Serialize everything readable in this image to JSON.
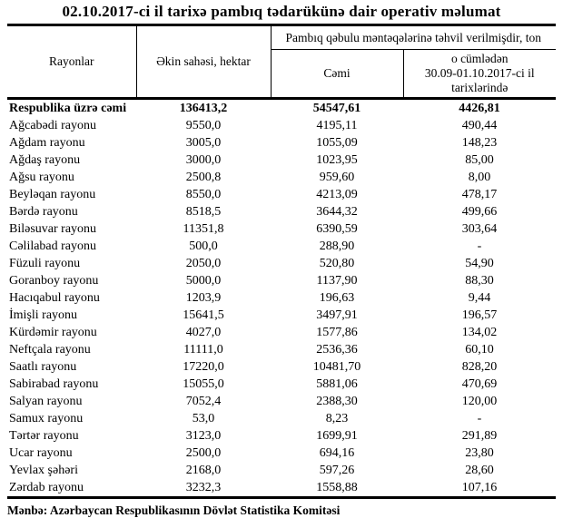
{
  "title": "02.10.2017-ci il tarixə pambıq tədarükünə dair operativ məlumat",
  "colors": {
    "text": "#000000",
    "background": "#ffffff",
    "border": "#000000"
  },
  "table": {
    "headers": {
      "rayonlar": "Rayonlar",
      "ekin_sahesi": "Əkin sahəsi, hektar",
      "tehvil_group": "Pambıq qəbulu məntəqələrinə təhvil verilmişdir, ton",
      "cemi": "Cəmi",
      "o_cumleden": "o cümlədən\n30.09-01.10.2017-ci il\ntarixlərində"
    },
    "rows": [
      {
        "name": "Respublika üzrə cəmi",
        "ekin_sahesi": "136413,2",
        "cemi": "54547,61",
        "o_cumleden": "4426,81",
        "bold": true
      },
      {
        "name": "Ağcabədi rayonu",
        "ekin_sahesi": "9550,0",
        "cemi": "4195,11",
        "o_cumleden": "490,44"
      },
      {
        "name": "Ağdam rayonu",
        "ekin_sahesi": "3005,0",
        "cemi": "1055,09",
        "o_cumleden": "148,23"
      },
      {
        "name": "Ağdaş rayonu",
        "ekin_sahesi": "3000,0",
        "cemi": "1023,95",
        "o_cumleden": "85,00"
      },
      {
        "name": "Ağsu rayonu",
        "ekin_sahesi": "2500,8",
        "cemi": "959,60",
        "o_cumleden": "8,00"
      },
      {
        "name": "Beyləqan rayonu",
        "ekin_sahesi": "8550,0",
        "cemi": "4213,09",
        "o_cumleden": "478,17"
      },
      {
        "name": "Bərdə rayonu",
        "ekin_sahesi": "8518,5",
        "cemi": "3644,32",
        "o_cumleden": "499,66"
      },
      {
        "name": "Biləsuvar rayonu",
        "ekin_sahesi": "11351,8",
        "cemi": "6390,59",
        "o_cumleden": "303,64"
      },
      {
        "name": "Cəlilabad rayonu",
        "ekin_sahesi": "500,0",
        "cemi": "288,90",
        "o_cumleden": "-"
      },
      {
        "name": "Füzuli rayonu",
        "ekin_sahesi": "2050,0",
        "cemi": "520,80",
        "o_cumleden": "54,90"
      },
      {
        "name": "Goranboy rayonu",
        "ekin_sahesi": "5000,0",
        "cemi": "1137,90",
        "o_cumleden": "88,30"
      },
      {
        "name": "Hacıqabul rayonu",
        "ekin_sahesi": "1203,9",
        "cemi": "196,63",
        "o_cumleden": "9,44"
      },
      {
        "name": "İmişli rayonu",
        "ekin_sahesi": "15641,5",
        "cemi": "3497,91",
        "o_cumleden": "196,57"
      },
      {
        "name": "Kürdəmir rayonu",
        "ekin_sahesi": "4027,0",
        "cemi": "1577,86",
        "o_cumleden": "134,02"
      },
      {
        "name": "Neftçala rayonu",
        "ekin_sahesi": "11111,0",
        "cemi": "2536,36",
        "o_cumleden": "60,10"
      },
      {
        "name": "Saatlı rayonu",
        "ekin_sahesi": "17220,0",
        "cemi": "10481,70",
        "o_cumleden": "828,20"
      },
      {
        "name": "Sabirabad rayonu",
        "ekin_sahesi": "15055,0",
        "cemi": "5881,06",
        "o_cumleden": "470,69"
      },
      {
        "name": "Salyan rayonu",
        "ekin_sahesi": "7052,4",
        "cemi": "2388,30",
        "o_cumleden": "120,00"
      },
      {
        "name": "Samux rayonu",
        "ekin_sahesi": "53,0",
        "cemi": "8,23",
        "o_cumleden": "-"
      },
      {
        "name": "Tərtər rayonu",
        "ekin_sahesi": "3123,0",
        "cemi": "1699,91",
        "o_cumleden": "291,89"
      },
      {
        "name": "Ucar rayonu",
        "ekin_sahesi": "2500,0",
        "cemi": "694,16",
        "o_cumleden": "23,80"
      },
      {
        "name": "Yevlax şəhəri",
        "ekin_sahesi": "2168,0",
        "cemi": "597,26",
        "o_cumleden": "28,60"
      },
      {
        "name": " Zərdab rayonu",
        "ekin_sahesi": "3232,3",
        "cemi": "1558,88",
        "o_cumleden": "107,16"
      }
    ]
  },
  "footer": {
    "source": "Mənbə: Azərbaycan Respublikasının Dövlət Statistika Komitəsi"
  }
}
